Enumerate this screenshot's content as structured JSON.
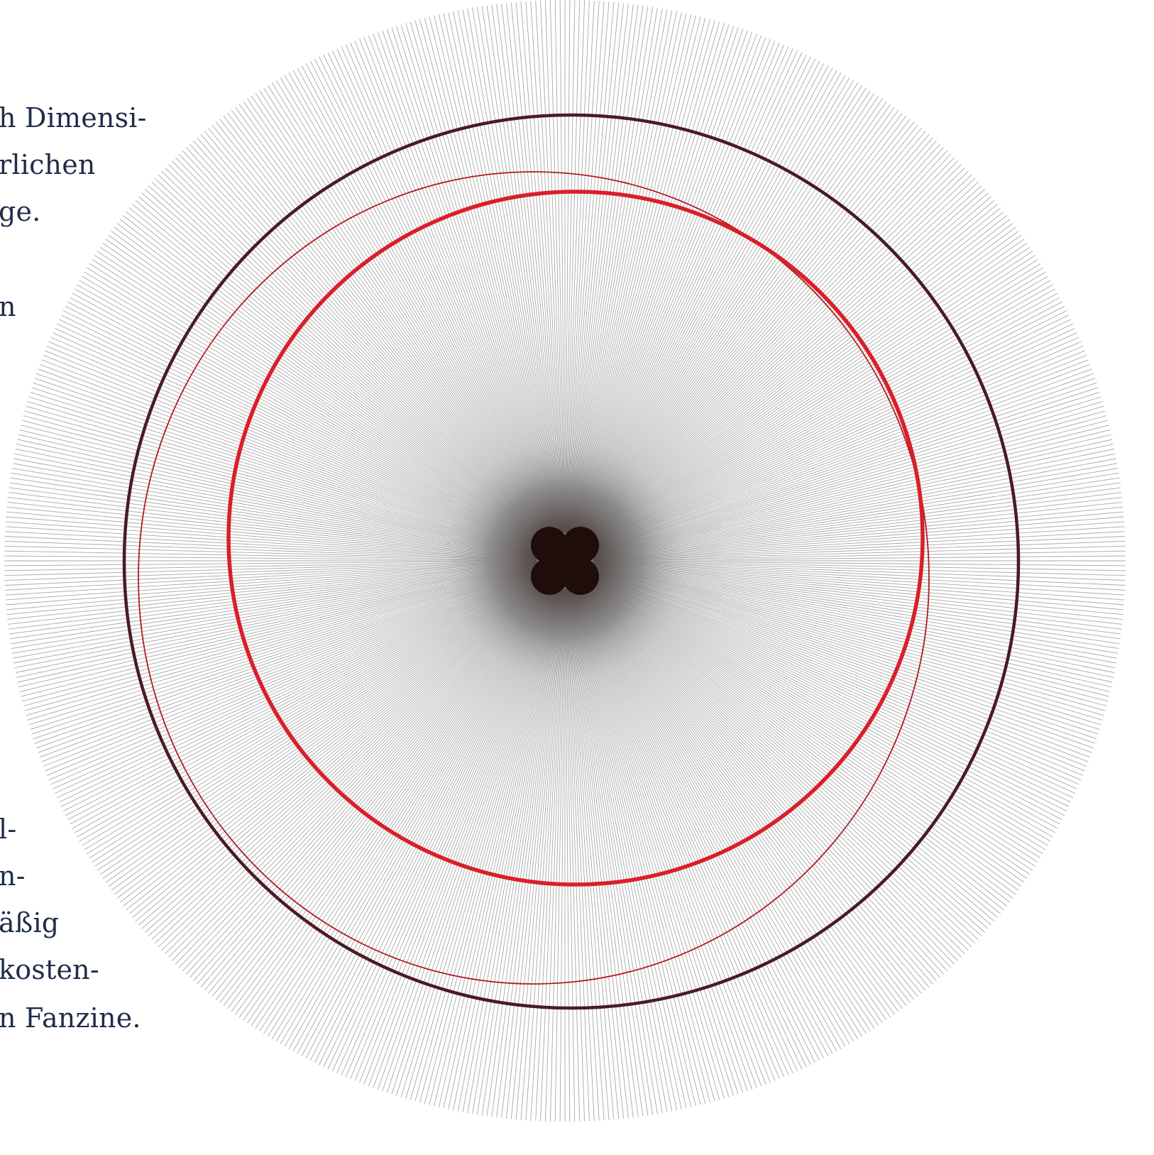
{
  "text_top": {
    "lines": [
      "h Dimensi-",
      "rlichen",
      "ge.",
      "n"
    ]
  },
  "text_bottom": {
    "lines": [
      "l-",
      "n-",
      "äßig",
      "kosten-",
      "n Fanzine."
    ]
  },
  "artwork": {
    "spoke_color": "#8a8a8a",
    "center_color": "#1e0d0a",
    "ring_outer_color": "#4a1b24",
    "ring_thin_color": "#b01a22",
    "ring_inner_color": "#d91f2a"
  }
}
